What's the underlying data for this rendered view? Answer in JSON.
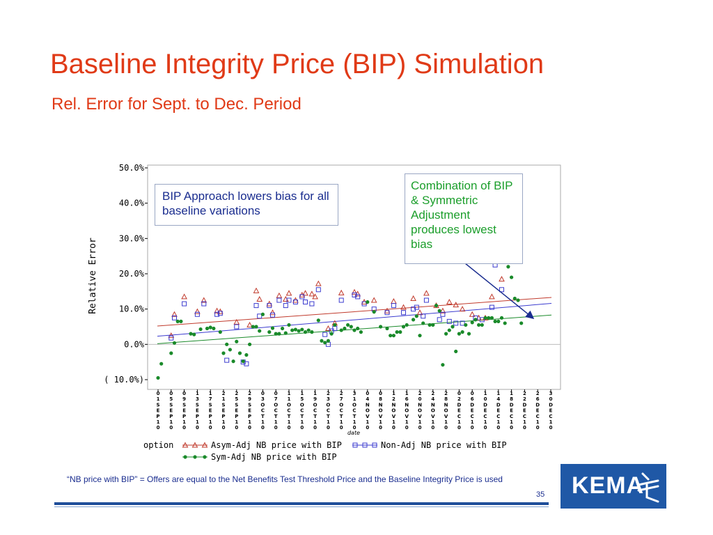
{
  "slide": {
    "title": "Baseline Integrity Price (BIP) Simulation",
    "subtitle": "Rel. Error for Sept. to Dec. Period",
    "note_box": "BIP Approach lowers bias for all baseline variations",
    "combo_box": "Combination of BIP & Symmetric Adjustment produces lowest bias",
    "footnote": "“NB price with BIP” = Offers are equal to the Net Benefits Test Threshold Price and the Baseline Integrity Price is used",
    "page_number": "35",
    "logo_text": "KEMA"
  },
  "chart_data": {
    "type": "scatter",
    "ylabel": "Relative Error",
    "xlabel": "date",
    "ylim": [
      -10,
      50
    ],
    "y_ticks": [
      "50.0%",
      "40.0%",
      "30.0%",
      "20.0%",
      "10.0%",
      "0.0%",
      "( 10.0%)"
    ],
    "y_tick_values": [
      50,
      40,
      30,
      20,
      10,
      0,
      -10
    ],
    "x_ticks": [
      "01SEP10",
      "05SEP10",
      "09SEP10",
      "13SEP10",
      "17SEP10",
      "21SEP10",
      "25SEP10",
      "29SEP10",
      "03OCT10",
      "07OCT10",
      "11OCT10",
      "15OCT10",
      "19OCT10",
      "23OCT10",
      "27OCT10",
      "31OCT10",
      "04NOV10",
      "08NOV10",
      "12NOV10",
      "16NOV10",
      "20NOV10",
      "24NOV10",
      "28NOV10",
      "02DEC10",
      "06DEC10",
      "10DEC10",
      "14DEC10",
      "18DEC10",
      "22DEC10",
      "26DEC10",
      "30DEC10"
    ],
    "x_range_days": [
      1,
      121
    ],
    "legend_title": "option",
    "legend_position": "bottom",
    "grid": false,
    "series": [
      {
        "name": "Asym-Adj NB price with BIP",
        "color": "#c0392b",
        "marker": "triangle",
        "trend": [
          5.2,
          13.3
        ],
        "points": [
          [
            5,
            2.5
          ],
          [
            6,
            8.5
          ],
          [
            9,
            13.5
          ],
          [
            13,
            9.3
          ],
          [
            15,
            12.5
          ],
          [
            19,
            9.5
          ],
          [
            20,
            9.3
          ],
          [
            25,
            6.3
          ],
          [
            29,
            5.5
          ],
          [
            31,
            15.2
          ],
          [
            32,
            12.8
          ],
          [
            35,
            11.5
          ],
          [
            36,
            9
          ],
          [
            38,
            13.8
          ],
          [
            40,
            12.8
          ],
          [
            41,
            14.5
          ],
          [
            43,
            12.5
          ],
          [
            45,
            14
          ],
          [
            46,
            14.5
          ],
          [
            48,
            14.3
          ],
          [
            49,
            13.5
          ],
          [
            50,
            17.2
          ],
          [
            53,
            4.5
          ],
          [
            55,
            6
          ],
          [
            57,
            14.6
          ],
          [
            61,
            14.8
          ],
          [
            62,
            14.3
          ],
          [
            64,
            12
          ],
          [
            67,
            12.5
          ],
          [
            71,
            9.5
          ],
          [
            73,
            12.2
          ],
          [
            76,
            10.5
          ],
          [
            79,
            13
          ],
          [
            81,
            9
          ],
          [
            83,
            14.5
          ],
          [
            86,
            11
          ],
          [
            88,
            9.5
          ],
          [
            90,
            12
          ],
          [
            92,
            11.2
          ],
          [
            94,
            10
          ],
          [
            97,
            8.5
          ],
          [
            99,
            7.5
          ],
          [
            101,
            7.5
          ],
          [
            103,
            13.5
          ],
          [
            104,
            23.5
          ],
          [
            106,
            18.5
          ]
        ]
      },
      {
        "name": "Non-Adj NB price with BIP",
        "color": "#3b3bcf",
        "marker": "square",
        "trend": [
          2.3,
          11.6
        ],
        "points": [
          [
            5,
            1.8
          ],
          [
            6,
            7.5
          ],
          [
            9,
            11.5
          ],
          [
            13,
            8.5
          ],
          [
            15,
            11.5
          ],
          [
            19,
            8.5
          ],
          [
            20,
            8.8
          ],
          [
            22,
            -4.5
          ],
          [
            25,
            5
          ],
          [
            27,
            -5
          ],
          [
            28,
            -5.5
          ],
          [
            31,
            11
          ],
          [
            32,
            8
          ],
          [
            35,
            11
          ],
          [
            36,
            8.3
          ],
          [
            38,
            12.5
          ],
          [
            40,
            11
          ],
          [
            41,
            12.5
          ],
          [
            43,
            12
          ],
          [
            45,
            13.5
          ],
          [
            46,
            12
          ],
          [
            48,
            11.5
          ],
          [
            50,
            15.5
          ],
          [
            52,
            2.8
          ],
          [
            53,
            0
          ],
          [
            54,
            3.8
          ],
          [
            55,
            4.5
          ],
          [
            57,
            12.5
          ],
          [
            61,
            14
          ],
          [
            62,
            13.5
          ],
          [
            64,
            11.5
          ],
          [
            67,
            10
          ],
          [
            71,
            9
          ],
          [
            73,
            11
          ],
          [
            76,
            9
          ],
          [
            79,
            10
          ],
          [
            80,
            10.5
          ],
          [
            82,
            8
          ],
          [
            83,
            12.5
          ],
          [
            87,
            7
          ],
          [
            88,
            8.5
          ],
          [
            90,
            6.5
          ],
          [
            92,
            6
          ],
          [
            94,
            6
          ],
          [
            98,
            7.5
          ],
          [
            100,
            7
          ],
          [
            103,
            10.5
          ],
          [
            104,
            22.5
          ],
          [
            106,
            15.5
          ]
        ]
      },
      {
        "name": "Sym-Adj NB price with BIP",
        "color": "#1a8a2a",
        "marker": "circle",
        "trend": [
          0.2,
          8.3
        ],
        "points": [
          [
            1,
            -9.5
          ],
          [
            2,
            -5.5
          ],
          [
            5,
            -2.5
          ],
          [
            6,
            0.4
          ],
          [
            7,
            6.5
          ],
          [
            8,
            6.5
          ],
          [
            11,
            3
          ],
          [
            12,
            2.8
          ],
          [
            14,
            4.3
          ],
          [
            16,
            4.5
          ],
          [
            17,
            4.8
          ],
          [
            18,
            4.5
          ],
          [
            20,
            3.5
          ],
          [
            21,
            -2.5
          ],
          [
            22,
            0
          ],
          [
            23,
            -1.5
          ],
          [
            24,
            -4.8
          ],
          [
            25,
            0.8
          ],
          [
            26,
            -2.5
          ],
          [
            27,
            -4.8
          ],
          [
            28,
            -3
          ],
          [
            29,
            0
          ],
          [
            30,
            5
          ],
          [
            31,
            5
          ],
          [
            32,
            3.8
          ],
          [
            33,
            8.5
          ],
          [
            35,
            3.5
          ],
          [
            36,
            4.6
          ],
          [
            37,
            3
          ],
          [
            38,
            3
          ],
          [
            39,
            4.5
          ],
          [
            40,
            3.2
          ],
          [
            41,
            5.5
          ],
          [
            42,
            4
          ],
          [
            43,
            4.2
          ],
          [
            44,
            3.8
          ],
          [
            45,
            4.2
          ],
          [
            46,
            3.5
          ],
          [
            47,
            4
          ],
          [
            48,
            3.5
          ],
          [
            50,
            6.8
          ],
          [
            51,
            1
          ],
          [
            52,
            0.5
          ],
          [
            53,
            1
          ],
          [
            54,
            3
          ],
          [
            55,
            5.5
          ],
          [
            57,
            4
          ],
          [
            58,
            4.5
          ],
          [
            59,
            5.5
          ],
          [
            60,
            5
          ],
          [
            61,
            4
          ],
          [
            62,
            4.5
          ],
          [
            63,
            3.5
          ],
          [
            65,
            12
          ],
          [
            67,
            9.2
          ],
          [
            69,
            5
          ],
          [
            71,
            4.5
          ],
          [
            72,
            2.5
          ],
          [
            73,
            2.5
          ],
          [
            74,
            3.5
          ],
          [
            75,
            3.5
          ],
          [
            76,
            5
          ],
          [
            77,
            5.5
          ],
          [
            79,
            7
          ],
          [
            80,
            8
          ],
          [
            81,
            2.5
          ],
          [
            82,
            6
          ],
          [
            84,
            5.5
          ],
          [
            85,
            5.5
          ],
          [
            86,
            11
          ],
          [
            87,
            9.5
          ],
          [
            88,
            -5.8
          ],
          [
            89,
            3
          ],
          [
            90,
            4
          ],
          [
            91,
            5
          ],
          [
            92,
            -2
          ],
          [
            93,
            3
          ],
          [
            94,
            3.5
          ],
          [
            95,
            5.5
          ],
          [
            96,
            3
          ],
          [
            97,
            6.2
          ],
          [
            98,
            7
          ],
          [
            99,
            5.5
          ],
          [
            100,
            5.5
          ],
          [
            101,
            7.5
          ],
          [
            102,
            7.5
          ],
          [
            103,
            7.5
          ],
          [
            104,
            6.5
          ],
          [
            105,
            6.5
          ],
          [
            106,
            7.5
          ],
          [
            107,
            6
          ],
          [
            108,
            22
          ],
          [
            109,
            19
          ],
          [
            110,
            13
          ],
          [
            111,
            12.5
          ],
          [
            112,
            6
          ]
        ]
      }
    ]
  }
}
